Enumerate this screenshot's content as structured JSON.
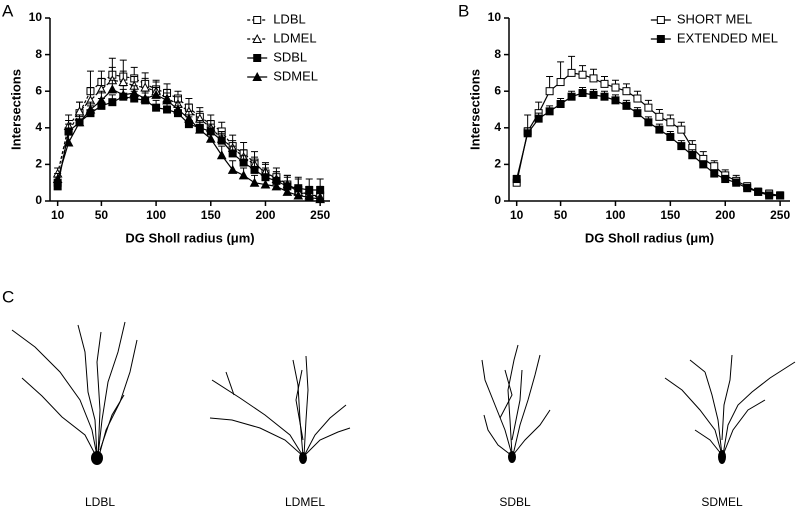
{
  "panel_labels": [
    "A",
    "B",
    "C"
  ],
  "neuron_labels": [
    "LDBL",
    "LDMEL",
    "SDBL",
    "SDMEL"
  ],
  "chart_data": [
    {
      "type": "line",
      "xlabel": "DG Sholl radius (μm)",
      "ylabel": "Intersections",
      "x": [
        10,
        20,
        30,
        40,
        50,
        60,
        70,
        80,
        90,
        100,
        110,
        120,
        130,
        140,
        150,
        160,
        170,
        180,
        190,
        200,
        210,
        220,
        230,
        240,
        250
      ],
      "xlim": [
        3,
        259
      ],
      "xticks": [
        10,
        50,
        100,
        150,
        200,
        250
      ],
      "ylim": [
        0,
        10
      ],
      "yticks": [
        0,
        2,
        4,
        6,
        8,
        10
      ],
      "legend": "upper right",
      "series": [
        {
          "name": "LDBL",
          "color": "#000000",
          "marker": "square-open",
          "line_style": "dashed",
          "values": [
            1.0,
            3.8,
            4.8,
            6.0,
            6.5,
            6.9,
            6.8,
            6.7,
            6.4,
            6.1,
            5.9,
            5.6,
            5.1,
            4.6,
            4.2,
            3.8,
            3.0,
            2.6,
            2.1,
            1.5,
            1.3,
            0.9,
            0.6,
            0.3,
            0.3
          ],
          "errors": [
            0.3,
            0.6,
            0.6,
            1.1,
            0.6,
            0.9,
            0.9,
            0.6,
            0.6,
            0.5,
            0.5,
            0.4,
            0.5,
            0.5,
            0.5,
            0.5,
            0.6,
            0.6,
            0.6,
            0.6,
            0.5,
            0.5,
            0.6,
            0.5,
            0.5
          ]
        },
        {
          "name": "LDMEL",
          "color": "#000000",
          "marker": "triangle-open",
          "line_style": "dashed",
          "values": [
            1.5,
            4.1,
            4.9,
            5.5,
            6.1,
            6.6,
            6.5,
            6.3,
            6.2,
            6.0,
            5.6,
            5.3,
            4.9,
            4.5,
            4.0,
            3.4,
            2.9,
            2.4,
            2.0,
            1.6,
            1.2,
            0.9,
            0.5,
            0.3,
            0.2
          ],
          "errors": [
            0.3,
            0.6,
            0.5,
            0.7,
            0.6,
            0.7,
            0.6,
            0.5,
            0.5,
            0.5,
            0.5,
            0.4,
            0.4,
            0.4,
            0.4,
            0.4,
            0.4,
            0.4,
            0.4,
            0.4,
            0.4,
            0.4,
            0.3,
            0.3,
            0.2
          ]
        },
        {
          "name": "SDBL",
          "color": "#000000",
          "marker": "square-filled",
          "line_style": "solid",
          "values": [
            0.8,
            3.8,
            4.3,
            4.8,
            5.2,
            5.4,
            5.7,
            5.6,
            5.5,
            5.1,
            5.0,
            4.8,
            4.2,
            4.0,
            3.8,
            3.3,
            2.6,
            2.1,
            1.7,
            1.3,
            1.1,
            0.8,
            0.7,
            0.6,
            0.6
          ],
          "errors": [
            0.3,
            0.4,
            0.4,
            0.4,
            0.4,
            0.4,
            0.4,
            0.4,
            0.4,
            0.4,
            0.4,
            0.4,
            0.4,
            0.4,
            0.4,
            0.4,
            0.4,
            0.4,
            0.5,
            0.5,
            0.5,
            0.6,
            0.6,
            0.6,
            0.6
          ]
        },
        {
          "name": "SDMEL",
          "color": "#000000",
          "marker": "triangle-filled",
          "line_style": "solid",
          "values": [
            1.2,
            3.2,
            4.3,
            5.0,
            5.5,
            6.1,
            5.8,
            5.9,
            5.6,
            5.8,
            5.5,
            5.0,
            4.5,
            3.9,
            3.4,
            2.5,
            1.7,
            1.4,
            1.0,
            0.9,
            0.8,
            0.5,
            0.3,
            0.2,
            0.1
          ],
          "errors": [
            0.3,
            0.4,
            0.4,
            0.4,
            0.5,
            0.5,
            0.5,
            0.4,
            0.4,
            0.4,
            0.4,
            0.4,
            0.4,
            0.4,
            0.5,
            0.5,
            0.5,
            0.4,
            0.4,
            0.4,
            0.4,
            0.3,
            0.3,
            0.3,
            0.3
          ]
        }
      ]
    },
    {
      "type": "line",
      "xlabel": "DG Sholl radius (μm)",
      "ylabel": "Intersections",
      "x": [
        10,
        20,
        30,
        40,
        50,
        60,
        70,
        80,
        90,
        100,
        110,
        120,
        130,
        140,
        150,
        160,
        170,
        180,
        190,
        200,
        210,
        220,
        230,
        240,
        250
      ],
      "xlim": [
        3,
        259
      ],
      "xticks": [
        10,
        50,
        100,
        150,
        200,
        250
      ],
      "ylim": [
        0,
        10
      ],
      "yticks": [
        0,
        2,
        4,
        6,
        8,
        10
      ],
      "legend": "upper right",
      "series": [
        {
          "name": "SHORT MEL",
          "color": "#000000",
          "marker": "square-open",
          "line_style": "solid",
          "values": [
            1.0,
            3.8,
            4.8,
            6.0,
            6.5,
            7.0,
            6.9,
            6.7,
            6.4,
            6.2,
            6.0,
            5.6,
            5.1,
            4.6,
            4.3,
            3.9,
            2.9,
            2.3,
            1.9,
            1.4,
            1.1,
            0.8,
            0.5,
            0.4,
            0.3
          ],
          "errors": [
            0.3,
            0.9,
            0.6,
            0.8,
            1.1,
            0.9,
            0.5,
            0.5,
            0.4,
            0.4,
            0.4,
            0.4,
            0.4,
            0.4,
            0.4,
            0.4,
            0.4,
            0.4,
            0.3,
            0.3,
            0.3,
            0.2,
            0.2,
            0.2,
            0.2
          ]
        },
        {
          "name": "EXTENDED MEL",
          "color": "#000000",
          "marker": "square-filled",
          "line_style": "solid",
          "values": [
            1.2,
            3.7,
            4.5,
            4.9,
            5.3,
            5.7,
            5.9,
            5.8,
            5.7,
            5.5,
            5.2,
            4.8,
            4.3,
            3.9,
            3.5,
            3.0,
            2.5,
            2.0,
            1.5,
            1.2,
            1.0,
            0.7,
            0.5,
            0.3,
            0.3
          ],
          "errors": [
            0.2,
            0.3,
            0.3,
            0.3,
            0.3,
            0.3,
            0.3,
            0.3,
            0.3,
            0.3,
            0.3,
            0.3,
            0.3,
            0.3,
            0.3,
            0.3,
            0.3,
            0.2,
            0.2,
            0.2,
            0.2,
            0.2,
            0.2,
            0.2,
            0.2
          ]
        }
      ]
    }
  ]
}
